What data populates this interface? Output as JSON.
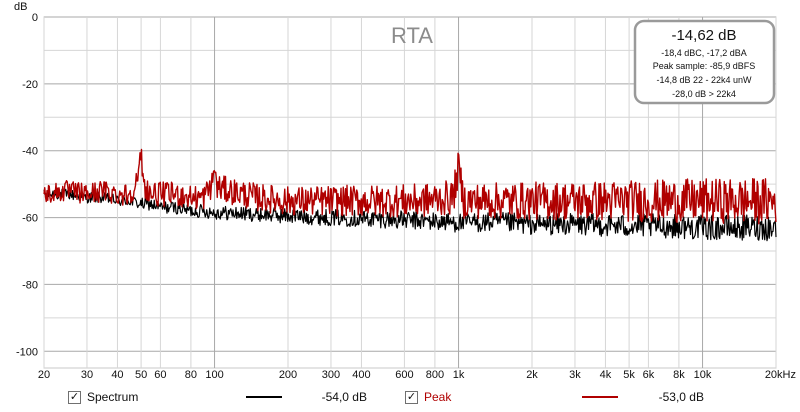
{
  "chart_data": {
    "type": "line",
    "title": "RTA",
    "xlabel": "",
    "ylabel": "dB",
    "x_scale": "log",
    "xlim": [
      20,
      20000
    ],
    "ylim": [
      -105,
      0
    ],
    "grid": true,
    "y_ticks": [
      0,
      -20,
      -40,
      -60,
      -80,
      -100
    ],
    "x_ticks": [
      20,
      30,
      40,
      50,
      60,
      80,
      100,
      200,
      300,
      400,
      600,
      800,
      1000,
      2000,
      3000,
      4000,
      5000,
      6000,
      8000,
      10000,
      20000
    ],
    "x_tick_labels": [
      "20",
      "30",
      "40",
      "50",
      "60",
      "80",
      "100",
      "200",
      "300",
      "400",
      "600",
      "800",
      "1k",
      "2k",
      "3k",
      "4k",
      "5k",
      "6k",
      "8k",
      "10k",
      "20kHz"
    ],
    "series": [
      {
        "name": "Spectrum",
        "color": "#000000",
        "x": [
          20,
          25,
          30,
          35,
          40,
          45,
          50,
          55,
          60,
          70,
          80,
          90,
          100,
          150,
          200,
          300,
          500,
          700,
          1000,
          1500,
          2000,
          3000,
          5000,
          7000,
          10000,
          15000,
          20000
        ],
        "values": [
          -53,
          -53,
          -54,
          -54,
          -55,
          -55,
          -56,
          -56,
          -57,
          -57,
          -58,
          -58,
          -58.5,
          -59,
          -59.5,
          -60,
          -60.5,
          -61,
          -61.5,
          -61.5,
          -62,
          -62,
          -62.5,
          -62.5,
          -63,
          -63,
          -63
        ]
      },
      {
        "name": "Peak",
        "color": "#b00000",
        "x": [
          20,
          25,
          30,
          35,
          40,
          45,
          49,
          50,
          51,
          55,
          60,
          70,
          80,
          90,
          98,
          100,
          102,
          150,
          200,
          300,
          500,
          700,
          950,
          1000,
          1050,
          1500,
          2000,
          3000,
          5000,
          7000,
          10000,
          15000,
          20000
        ],
        "values": [
          -53,
          -52,
          -53,
          -52,
          -53,
          -53,
          -48,
          -39,
          -50,
          -53,
          -53,
          -53,
          -54,
          -54,
          -50,
          -44,
          -51,
          -54,
          -55,
          -55,
          -55,
          -55,
          -54,
          -45,
          -55,
          -55,
          -55,
          -55,
          -55,
          -55,
          -55,
          -55,
          -55
        ]
      }
    ],
    "legend": [
      {
        "label": "Spectrum",
        "value": "-54,0 dB",
        "color": "#000000"
      },
      {
        "label": "Peak",
        "value": "-53,0 dB",
        "color": "#b00000"
      }
    ]
  },
  "info_box": {
    "headline": "-14,62 dB",
    "lines": [
      "-18,4 dBC, -17,2 dBA",
      "Peak sample: -85,9 dBFS",
      "-14,8 dB 22 - 22k4 unW",
      "-28,0 dB > 22k4"
    ]
  },
  "colors": {
    "background": "#ffffff",
    "grid_minor": "#d6d6d6",
    "grid_major": "#a8a8a8",
    "spectrum": "#000000",
    "peak": "#b00000",
    "title": "#8c8c8c"
  }
}
